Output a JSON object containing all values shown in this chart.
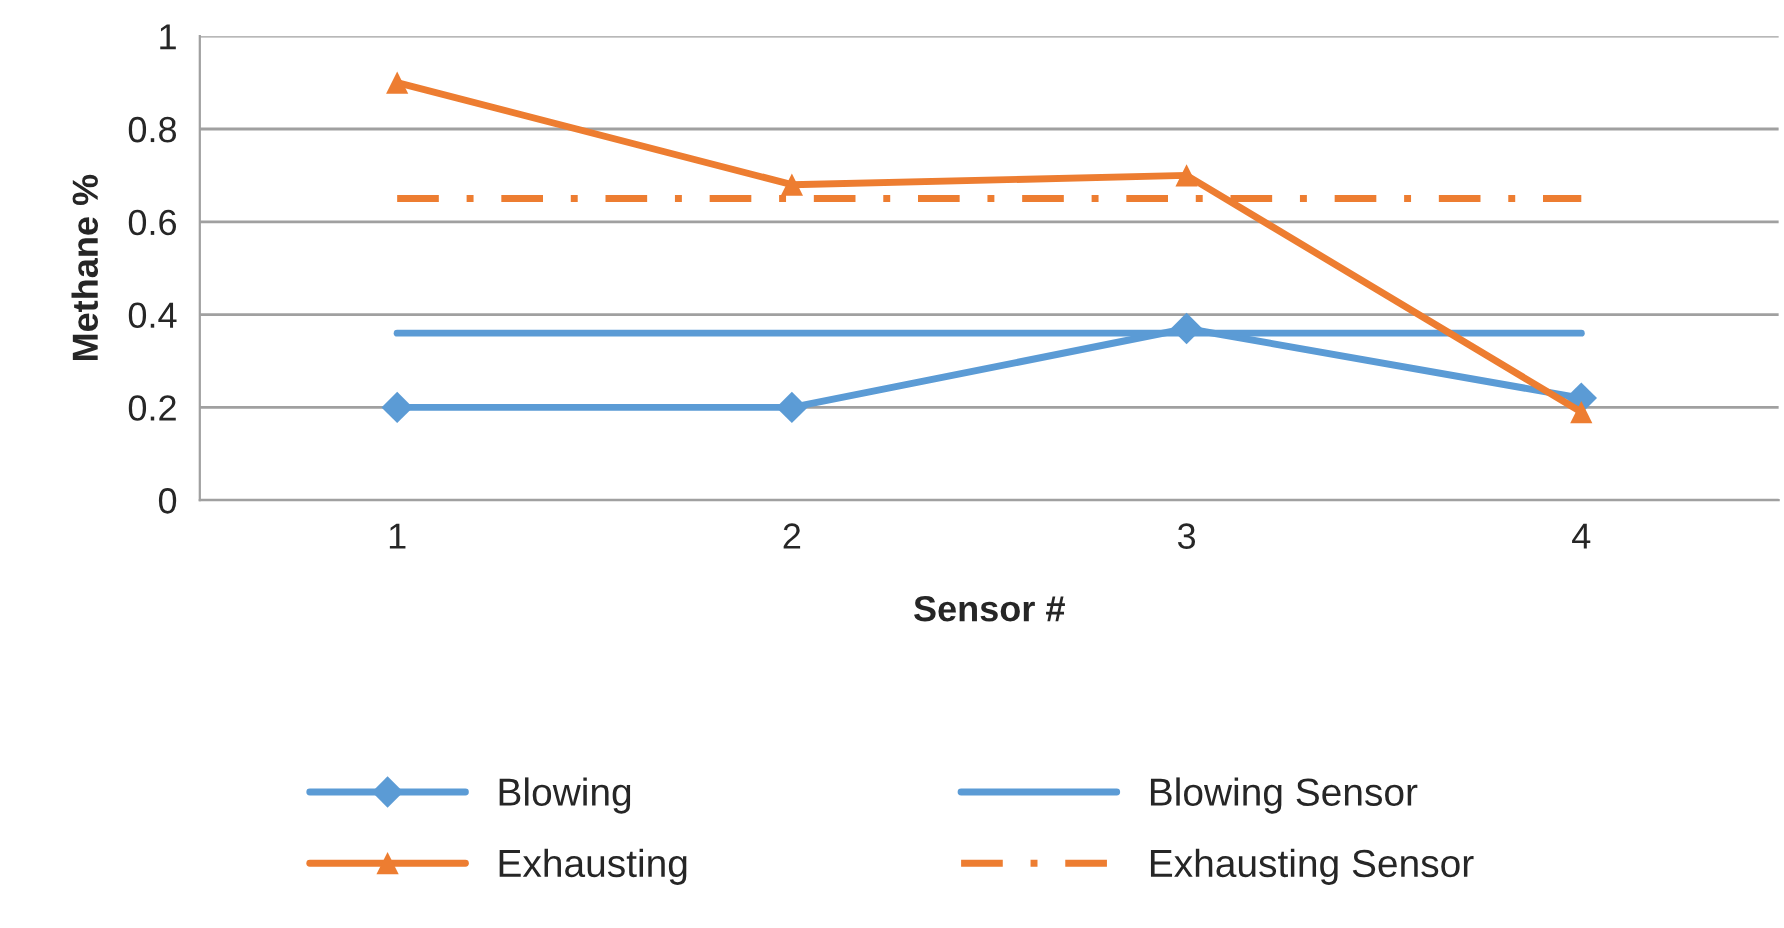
{
  "chart_data": {
    "type": "line",
    "xlabel": "Sensor #",
    "ylabel": "Methane %",
    "categories": [
      "1",
      "2",
      "3",
      "4"
    ],
    "ylim": [
      0,
      1
    ],
    "yticks": [
      0,
      {
        "value": 0.2,
        "label": "0.2"
      },
      {
        "value": 0.4,
        "label": "0.4"
      },
      {
        "value": 0.6,
        "label": "0.6"
      },
      {
        "value": 0.8,
        "label": "0.8"
      },
      1
    ],
    "grid": "y",
    "legend": "bottom",
    "series": [
      {
        "name": "Blowing",
        "color": "#5b9bd5",
        "marker": "diamond",
        "line_style": "solid",
        "values": [
          0.2,
          0.2,
          0.37,
          0.22
        ]
      },
      {
        "name": "Blowing Sensor",
        "color": "#5b9bd5",
        "marker": "none",
        "line_style": "solid",
        "values": [
          0.36,
          0.36,
          0.36,
          0.36
        ]
      },
      {
        "name": "Exhausting",
        "color": "#ed7d31",
        "marker": "triangle",
        "line_style": "solid",
        "values": [
          0.9,
          0.68,
          0.7,
          0.19
        ]
      },
      {
        "name": "Exhausting Sensor",
        "color": "#ed7d31",
        "marker": "none",
        "line_style": "dashdot",
        "values": [
          0.65,
          0.65,
          0.65,
          0.65
        ]
      }
    ]
  }
}
